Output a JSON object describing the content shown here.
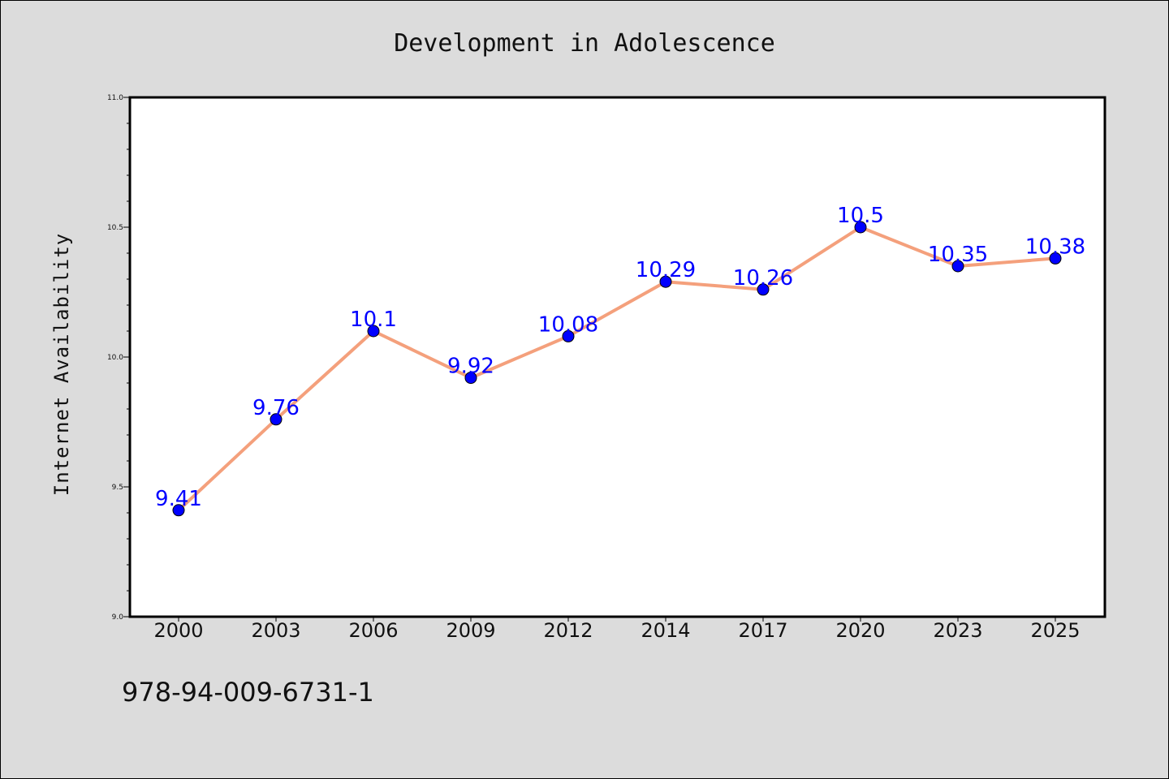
{
  "chart_data": {
    "type": "line",
    "title": "Development in Adolescence",
    "xlabel": "",
    "ylabel": "Internet Availability",
    "categories": [
      "2000",
      "2003",
      "2006",
      "2009",
      "2012",
      "2014",
      "2017",
      "2020",
      "2023",
      "2025"
    ],
    "series": [
      {
        "values": [
          9.41,
          9.76,
          10.1,
          9.92,
          10.08,
          10.29,
          10.26,
          10.5,
          10.35,
          10.38
        ],
        "labels": [
          "9.41",
          "9.76",
          "10.1",
          "9.92",
          "10.08",
          "10.29",
          "10.26",
          "10.5",
          "10.35",
          "10.38"
        ],
        "line_color": "#f4a07c",
        "marker_color": "#0000ff"
      }
    ],
    "ylim": [
      9.0,
      11.0
    ],
    "yticks": [
      "9.0",
      "9.5",
      "10.0",
      "10.5",
      "11.0"
    ],
    "grid": false,
    "legend": "none"
  },
  "footer_text": "978-94-009-6731-1",
  "colors": {
    "background": "#dcdcdc",
    "plot_background": "#ffffff",
    "line": "#f4a07c",
    "marker": "#0000ff",
    "data_label": "#0000ff"
  }
}
